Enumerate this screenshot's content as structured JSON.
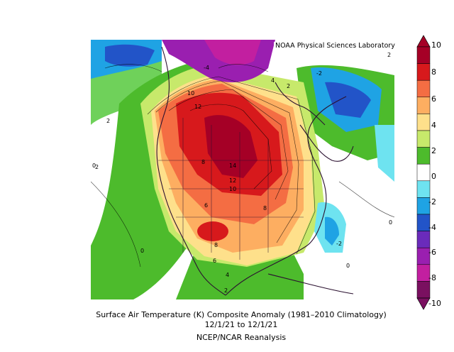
{
  "map": {
    "credit": "NOAA Physical Sciences Laboratory",
    "caption_title": "Surface Air Temperature (K) Composite Anomaly (1981–2010 Climatology)",
    "caption_dates": "12/1/21   to 12/1/21",
    "caption_source": "NCEP/NCAR Reanalysis",
    "region": "North America",
    "contour_labels": [
      "2",
      "-4",
      "4",
      "2",
      "-2",
      "10",
      "12",
      "2",
      "8",
      "14",
      "12",
      "10",
      "8",
      "6",
      "8",
      "6",
      "4",
      "2",
      "-2",
      "0",
      "0",
      "0",
      "0",
      "2"
    ]
  },
  "colorbar": {
    "ticks": [
      "10",
      "8",
      "6",
      "4",
      "2",
      "0",
      "-2",
      "-4",
      "-6",
      "-8",
      "-10"
    ],
    "colors": [
      "#a50026",
      "#d7191c",
      "#f46d43",
      "#fdae61",
      "#fee08b",
      "#c7e96b",
      "#4dbb2c",
      "#ffffff",
      "#6ee3f0",
      "#1fa3e4",
      "#2254c8",
      "#6a2bbb",
      "#9a1fb0",
      "#c21fa0",
      "#7a1060"
    ]
  }
}
